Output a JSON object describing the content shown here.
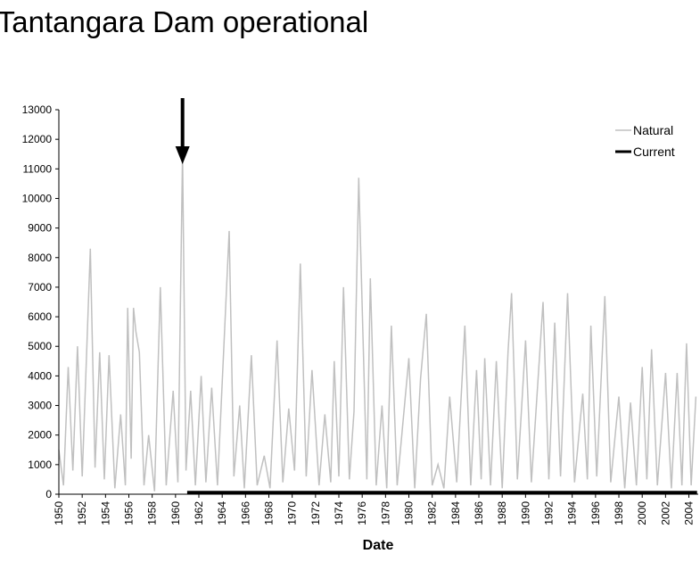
{
  "chart_data": {
    "type": "line",
    "annotation": "Tantangara Dam operational",
    "annotation_x": 1960.6,
    "x_label": "Date",
    "xlim": [
      1950,
      2004.8
    ],
    "xticks": [
      1950,
      1952,
      1954,
      1956,
      1958,
      1960,
      1962,
      1964,
      1966,
      1968,
      1970,
      1972,
      1974,
      1976,
      1978,
      1980,
      1982,
      1984,
      1986,
      1988,
      1990,
      1992,
      1994,
      1996,
      1998,
      2000,
      2002,
      2004
    ],
    "ylim": [
      0,
      13000
    ],
    "yticks": [
      0,
      1000,
      2000,
      3000,
      4000,
      5000,
      6000,
      7000,
      8000,
      9000,
      10000,
      11000,
      12000,
      13000
    ],
    "legend": "top-right",
    "series": [
      {
        "name": "Natural",
        "color": "#c0c0c0",
        "x": [
          1950,
          1950.4,
          1950.8,
          1951.2,
          1951.6,
          1952,
          1952.7,
          1953.1,
          1953.5,
          1953.9,
          1954.3,
          1954.8,
          1955.3,
          1955.7,
          1955.9,
          1956.2,
          1956.4,
          1956.6,
          1956.9,
          1957.3,
          1957.7,
          1958.2,
          1958.7,
          1959.2,
          1959.8,
          1960.2,
          1960.6,
          1960.9,
          1961.3,
          1961.7,
          1962.2,
          1962.6,
          1963.1,
          1963.6,
          1964.6,
          1965,
          1965.5,
          1965.9,
          1966.5,
          1967,
          1967.6,
          1968.1,
          1968.7,
          1969.2,
          1969.7,
          1970.2,
          1970.7,
          1971.2,
          1971.7,
          1972.3,
          1972.8,
          1973.3,
          1973.6,
          1974,
          1974.4,
          1974.9,
          1975.3,
          1975.7,
          1976,
          1976.4,
          1976.7,
          1977.2,
          1977.7,
          1978.1,
          1978.5,
          1979,
          1980,
          1980.5,
          1981,
          1981.5,
          1982,
          1982.5,
          1983,
          1983.5,
          1984.1,
          1984.8,
          1985.3,
          1985.8,
          1986.2,
          1986.5,
          1987,
          1987.5,
          1988,
          1988.5,
          1988.8,
          1989.3,
          1990,
          1990.5,
          1991.5,
          1992,
          1992.5,
          1993,
          1993.6,
          1994.2,
          1994.9,
          1995.3,
          1995.6,
          1996.1,
          1996.8,
          1997.3,
          1998,
          1998.5,
          1999,
          1999.5,
          2000,
          2000.4,
          2000.8,
          2001.3,
          2002,
          2002.5,
          2003,
          2003.4,
          2003.8,
          2004.2,
          2004.6
        ],
        "values": [
          1500,
          300,
          4300,
          800,
          5000,
          600,
          8300,
          900,
          4800,
          500,
          4700,
          200,
          2700,
          300,
          6300,
          1200,
          6300,
          5500,
          4800,
          300,
          2000,
          100,
          7000,
          300,
          3500,
          400,
          11500,
          800,
          3500,
          300,
          4000,
          400,
          3600,
          300,
          8900,
          600,
          3000,
          200,
          4700,
          300,
          1300,
          200,
          5200,
          400,
          2900,
          800,
          7800,
          600,
          4200,
          300,
          2700,
          400,
          4500,
          600,
          7000,
          500,
          2800,
          10700,
          6300,
          500,
          7300,
          300,
          3000,
          200,
          5700,
          300,
          4600,
          200,
          3900,
          6100,
          300,
          1000,
          200,
          3300,
          400,
          5700,
          300,
          4200,
          500,
          4600,
          300,
          4500,
          200,
          4800,
          6800,
          500,
          5200,
          400,
          6500,
          500,
          5800,
          600,
          6800,
          400,
          3400,
          500,
          5700,
          600,
          6700,
          400,
          3300,
          200,
          3100,
          300,
          4300,
          500,
          4900,
          300,
          4100,
          200,
          4100,
          300,
          5100,
          300,
          3300
        ]
      },
      {
        "name": "Current",
        "color": "#000000",
        "x": [
          1961,
          2004.7
        ],
        "values": [
          50,
          50
        ]
      }
    ]
  }
}
